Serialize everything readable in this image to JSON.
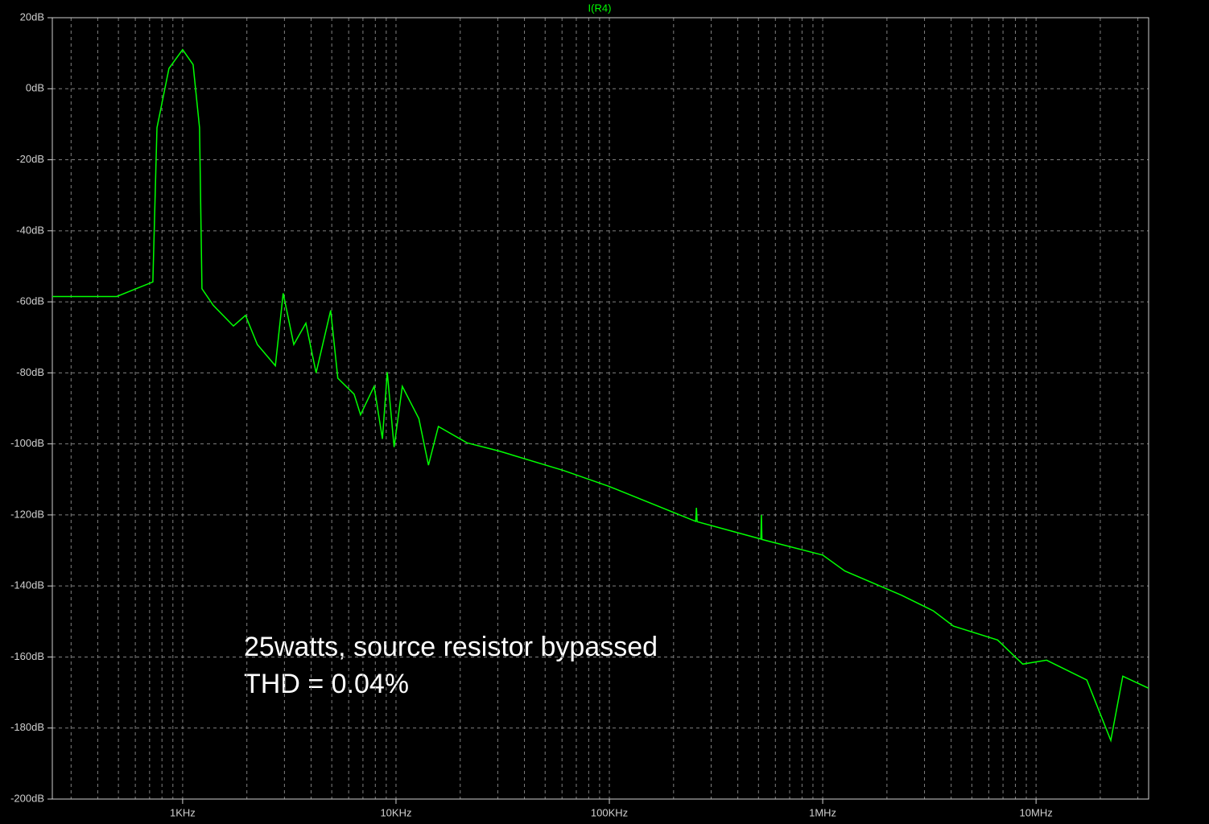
{
  "chart_data": {
    "type": "line",
    "title": "I(R4)",
    "annotations": [
      "25watts, source resistor bypassed",
      "THD = 0.04%"
    ],
    "log_x": true,
    "grid": true,
    "minor_grid": true,
    "xlim": [
      245,
      33700000
    ],
    "ylim": [
      -200,
      20
    ],
    "xticks": [
      {
        "value": 1000,
        "label": "1KHz"
      },
      {
        "value": 10000,
        "label": "10KHz"
      },
      {
        "value": 100000,
        "label": "100KHz"
      },
      {
        "value": 1000000,
        "label": "1MHz"
      },
      {
        "value": 10000000,
        "label": "10MHz"
      }
    ],
    "yticks": [
      {
        "value": 20,
        "label": "20dB"
      },
      {
        "value": 0,
        "label": "0dB"
      },
      {
        "value": -20,
        "label": "-20dB"
      },
      {
        "value": -40,
        "label": "-40dB"
      },
      {
        "value": -60,
        "label": "-60dB"
      },
      {
        "value": -80,
        "label": "-80dB"
      },
      {
        "value": -100,
        "label": "-100dB"
      },
      {
        "value": -120,
        "label": "-120dB"
      },
      {
        "value": -140,
        "label": "-140dB"
      },
      {
        "value": -160,
        "label": "-160dB"
      },
      {
        "value": -180,
        "label": "-180dB"
      },
      {
        "value": -200,
        "label": "-200dB"
      }
    ],
    "series": [
      {
        "name": "I(R4)",
        "color": "#00ff00",
        "x": [
          245,
          491,
          725,
          758,
          863,
          1000,
          1119,
          1200,
          1232,
          1392,
          1730,
          1970,
          2240,
          2720,
          2960,
          3320,
          3780,
          4220,
          4940,
          5340,
          6360,
          6820,
          7900,
          8640,
          9100,
          9800,
          10700,
          12800,
          14200,
          15800,
          21500,
          30400,
          61000,
          100000,
          254000,
          256000,
          258000,
          513000,
          516000,
          519000,
          1000000,
          1270000,
          2340000,
          3300000,
          4100000,
          6600000,
          8660000,
          11200000,
          17300000,
          22400000,
          25500000,
          33700000
        ],
        "values": [
          -58.5,
          -58.5,
          -54.4,
          -11,
          5.7,
          11,
          6.8,
          -11,
          -56.3,
          -61,
          -66.8,
          -63.8,
          -72,
          -78,
          -57.6,
          -72,
          -66,
          -80,
          -62.4,
          -81.5,
          -86,
          -91.8,
          -83.8,
          -98.6,
          -79.8,
          -100.9,
          -83.8,
          -92.9,
          -106,
          -95.1,
          -99.7,
          -102,
          -107.5,
          -112,
          -121.8,
          -118,
          -121.9,
          -126.8,
          -120,
          -126.9,
          -131.3,
          -135.8,
          -142.6,
          -147,
          -151.3,
          -155.2,
          -162,
          -160.9,
          -166.5,
          -183.5,
          -165.4,
          -168.8
        ]
      }
    ]
  }
}
